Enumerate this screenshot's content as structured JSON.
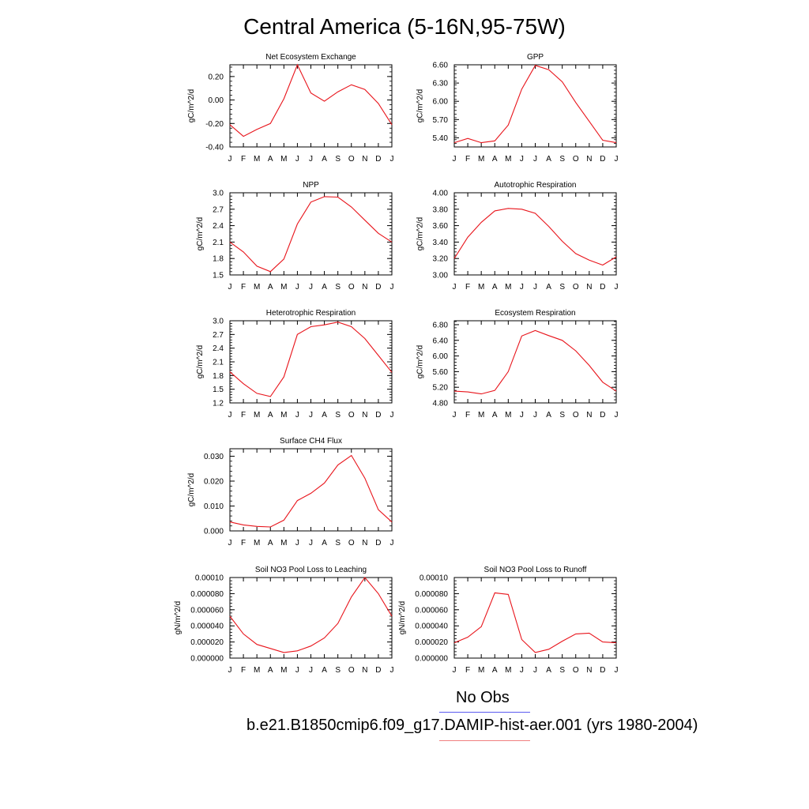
{
  "figure": {
    "title": "Central America (5-16N,95-75W)",
    "months": [
      "J",
      "F",
      "M",
      "A",
      "M",
      "J",
      "J",
      "A",
      "S",
      "O",
      "N",
      "D",
      "J"
    ],
    "line_color": "#e8141b"
  },
  "legend": [
    {
      "label": "No Obs",
      "color": "#5b5bf0"
    },
    {
      "label": "b.e21.B1850cmip6.f09_g17.DAMIP-hist-aer.001 (yrs 1980-2004)",
      "color": "#f08080"
    }
  ],
  "chart_data": [
    {
      "type": "line",
      "title": "Net Ecosystem Exchange",
      "ylabel": "gC/m^2/d",
      "ylim": [
        -0.4,
        0.3
      ],
      "ticks": [
        -0.4,
        -0.2,
        0.0,
        0.2
      ],
      "tick_labels": [
        "-0.40",
        "-0.20",
        "0.00",
        "0.20"
      ],
      "categories": [
        "J",
        "F",
        "M",
        "A",
        "M",
        "J",
        "J",
        "A",
        "S",
        "O",
        "N",
        "D",
        "J"
      ],
      "values": [
        -0.21,
        -0.31,
        -0.25,
        -0.2,
        0.01,
        0.3,
        0.06,
        -0.01,
        0.07,
        0.13,
        0.09,
        -0.03,
        -0.21
      ]
    },
    {
      "type": "line",
      "title": "GPP",
      "ylabel": "gC/m^2/d",
      "ylim": [
        5.25,
        6.6
      ],
      "ticks": [
        5.4,
        5.7,
        6.0,
        6.3,
        6.6
      ],
      "tick_labels": [
        "5.40",
        "5.70",
        "6.00",
        "6.30",
        "6.60"
      ],
      "categories": [
        "J",
        "F",
        "M",
        "A",
        "M",
        "J",
        "J",
        "A",
        "S",
        "O",
        "N",
        "D",
        "J"
      ],
      "values": [
        5.32,
        5.39,
        5.32,
        5.35,
        5.61,
        6.2,
        6.59,
        6.52,
        6.32,
        5.98,
        5.67,
        5.36,
        5.32
      ]
    },
    {
      "type": "line",
      "title": "NPP",
      "ylabel": "gC/m^2/d",
      "ylim": [
        1.5,
        3.0
      ],
      "ticks": [
        1.5,
        1.8,
        2.1,
        2.4,
        2.7,
        3.0
      ],
      "tick_labels": [
        "1.5",
        "1.8",
        "2.1",
        "2.4",
        "2.7",
        "3.0"
      ],
      "categories": [
        "J",
        "F",
        "M",
        "A",
        "M",
        "J",
        "J",
        "A",
        "S",
        "O",
        "N",
        "D",
        "J"
      ],
      "values": [
        2.1,
        1.92,
        1.66,
        1.56,
        1.79,
        2.43,
        2.83,
        2.93,
        2.92,
        2.74,
        2.5,
        2.26,
        2.1
      ]
    },
    {
      "type": "line",
      "title": "Autotrophic Respiration",
      "ylabel": "gC/m^2/d",
      "ylim": [
        3.0,
        4.0
      ],
      "ticks": [
        3.0,
        3.2,
        3.4,
        3.6,
        3.8,
        4.0
      ],
      "tick_labels": [
        "3.00",
        "3.20",
        "3.40",
        "3.60",
        "3.80",
        "4.00"
      ],
      "categories": [
        "J",
        "F",
        "M",
        "A",
        "M",
        "J",
        "J",
        "A",
        "S",
        "O",
        "N",
        "D",
        "J"
      ],
      "values": [
        3.2,
        3.46,
        3.64,
        3.78,
        3.81,
        3.8,
        3.75,
        3.59,
        3.41,
        3.26,
        3.18,
        3.12,
        3.22
      ]
    },
    {
      "type": "line",
      "title": "Heterotrophic Respiration",
      "ylabel": "gC/m^2/d",
      "ylim": [
        1.2,
        3.0
      ],
      "ticks": [
        1.2,
        1.5,
        1.8,
        2.1,
        2.4,
        2.7,
        3.0
      ],
      "tick_labels": [
        "1.2",
        "1.5",
        "1.8",
        "2.1",
        "2.4",
        "2.7",
        "3.0"
      ],
      "categories": [
        "J",
        "F",
        "M",
        "A",
        "M",
        "J",
        "J",
        "A",
        "S",
        "O",
        "N",
        "D",
        "J"
      ],
      "values": [
        1.88,
        1.62,
        1.41,
        1.34,
        1.77,
        2.7,
        2.87,
        2.91,
        2.97,
        2.87,
        2.61,
        2.24,
        1.87
      ]
    },
    {
      "type": "line",
      "title": "Ecosystem Respiration",
      "ylabel": "gC/m^2/d",
      "ylim": [
        4.8,
        6.9
      ],
      "ticks": [
        4.8,
        5.2,
        5.6,
        6.0,
        6.4,
        6.8
      ],
      "tick_labels": [
        "4.80",
        "5.20",
        "5.60",
        "6.00",
        "6.40",
        "6.80"
      ],
      "categories": [
        "J",
        "F",
        "M",
        "A",
        "M",
        "J",
        "J",
        "A",
        "S",
        "O",
        "N",
        "D",
        "J"
      ],
      "values": [
        5.1,
        5.08,
        5.03,
        5.12,
        5.6,
        6.51,
        6.65,
        6.52,
        6.4,
        6.13,
        5.76,
        5.33,
        5.1
      ]
    },
    {
      "type": "line",
      "title": "Surface CH4 Flux",
      "ylabel": "gC/m^2/d",
      "ylim": [
        0.0,
        0.033
      ],
      "ticks": [
        0.0,
        0.01,
        0.02,
        0.03
      ],
      "tick_labels": [
        "0.000",
        "0.010",
        "0.020",
        "0.030"
      ],
      "categories": [
        "J",
        "F",
        "M",
        "A",
        "M",
        "J",
        "J",
        "A",
        "S",
        "O",
        "N",
        "D",
        "J"
      ],
      "values": [
        0.0036,
        0.0024,
        0.0018,
        0.0016,
        0.0043,
        0.0122,
        0.0151,
        0.0192,
        0.0265,
        0.0303,
        0.0212,
        0.0085,
        0.0036
      ]
    },
    {
      "type": "line",
      "title": "Soil NO3 Pool Loss to Leaching",
      "ylabel": "gN/m^2/d",
      "ylim": [
        0.0,
        0.0001
      ],
      "ticks": [
        0.0,
        2e-05,
        4e-05,
        6e-05,
        8e-05,
        0.0001
      ],
      "tick_labels": [
        "0.000000",
        "0.000020",
        "0.000040",
        "0.000060",
        "0.000080",
        "0.00010"
      ],
      "categories": [
        "J",
        "F",
        "M",
        "A",
        "M",
        "J",
        "J",
        "A",
        "S",
        "O",
        "N",
        "D",
        "J"
      ],
      "values": [
        5.2e-05,
        3e-05,
        1.7e-05,
        1.2e-05,
        7e-06,
        9e-06,
        1.5e-05,
        2.5e-05,
        4.3e-05,
        7.6e-05,
        0.0001,
        8e-05,
        5.2e-05
      ]
    },
    {
      "type": "line",
      "title": "Soil NO3 Pool Loss to Runoff",
      "ylabel": "gN/m^2/d",
      "ylim": [
        0.0,
        0.0001
      ],
      "ticks": [
        0.0,
        2e-05,
        4e-05,
        6e-05,
        8e-05,
        0.0001
      ],
      "tick_labels": [
        "0.000000",
        "0.000020",
        "0.000040",
        "0.000060",
        "0.000080",
        "0.00010"
      ],
      "categories": [
        "J",
        "F",
        "M",
        "A",
        "M",
        "J",
        "J",
        "A",
        "S",
        "O",
        "N",
        "D",
        "J"
      ],
      "values": [
        1.9e-05,
        2.6e-05,
        3.9e-05,
        8.1e-05,
        7.9e-05,
        2.3e-05,
        7e-06,
        1.1e-05,
        2.1e-05,
        3e-05,
        3.1e-05,
        2e-05,
        1.9e-05
      ]
    }
  ]
}
